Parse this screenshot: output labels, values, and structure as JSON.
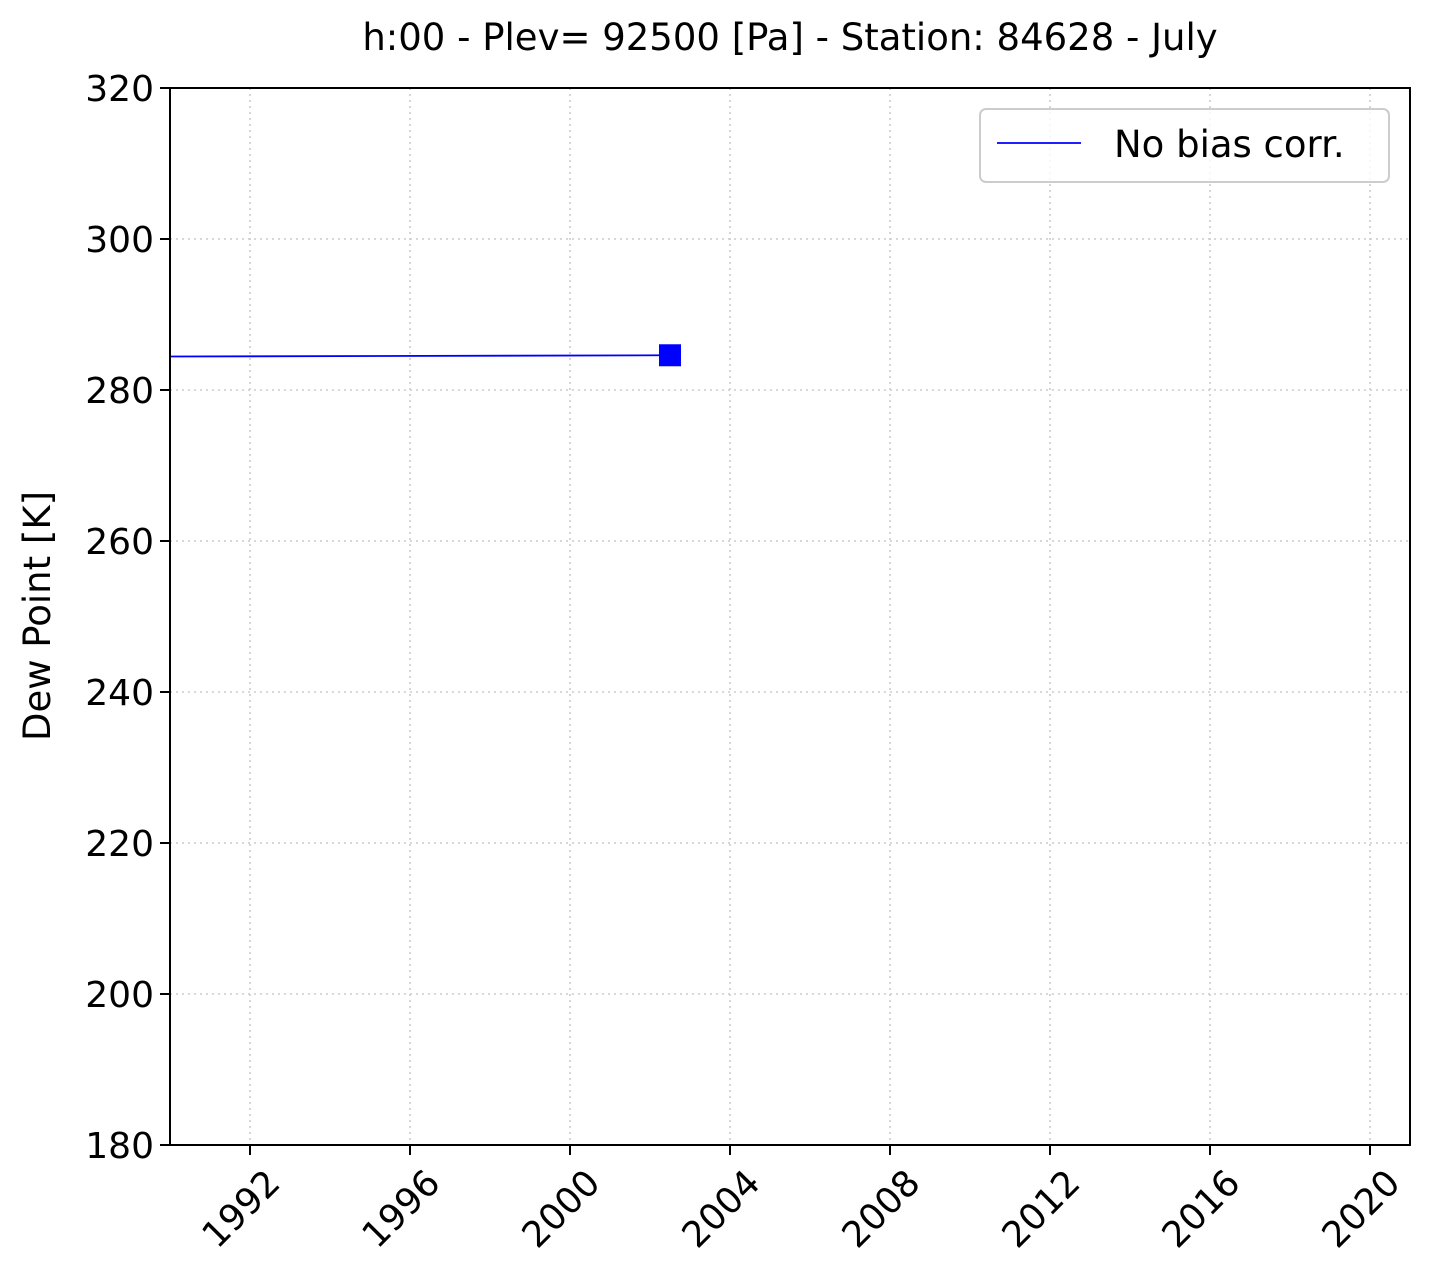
{
  "chart_data": {
    "type": "line",
    "title": "h:00 - Plev= 92500 [Pa] - Station: 84628 - July",
    "xlabel": "",
    "ylabel": "Dew Point [K]",
    "xlim": [
      1990.0,
      2021.0
    ],
    "ylim": [
      180,
      320
    ],
    "xticks": [
      1992,
      1996,
      2000,
      2004,
      2008,
      2012,
      2016,
      2020
    ],
    "yticks": [
      180,
      200,
      220,
      240,
      260,
      280,
      300,
      320
    ],
    "grid": true,
    "legend_position": "top-right",
    "series": [
      {
        "name": "No bias corr.",
        "color": "#0000ff",
        "marker": "square",
        "points": [
          {
            "x": 1979.5,
            "y": 284.3
          },
          {
            "x": 2002.5,
            "y": 284.6
          }
        ],
        "marker_points": [
          {
            "x": 2002.5,
            "y": 284.6
          }
        ]
      }
    ]
  }
}
